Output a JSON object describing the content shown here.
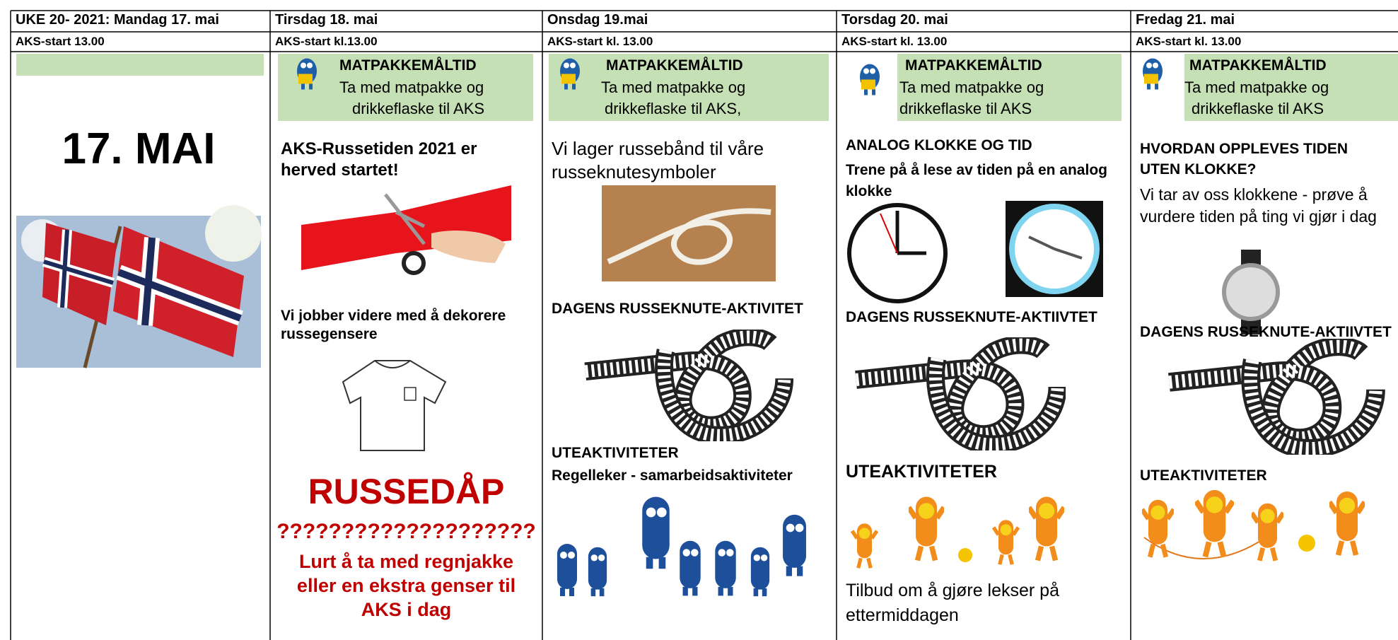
{
  "table": {
    "columns": [
      {
        "day": "UKE 20- 2021: Mandag 17. mai",
        "aks": "AKS-start 13.00",
        "title": "17. MAI"
      },
      {
        "day": "Tirsdag 18. mai",
        "aks": "AKS-start kl.13.00",
        "lunch": {
          "title": "MATPAKKEMÅLTID",
          "lines": [
            "Ta med matpakke og",
            "drikkeflaske til AKS"
          ]
        },
        "items": [
          "AKS-Russetiden 2021 er herved startet!",
          "Vi jobber videre med å dekorere russegensere",
          "RUSSEDÅP",
          "????????????????????",
          "Lurt å ta med regnjakke eller en ekstra genser til AKS i dag"
        ]
      },
      {
        "day": "Onsdag 19.mai",
        "aks": "AKS-start kl. 13.00",
        "lunch": {
          "title": "MATPAKKEMÅLTID",
          "lines": [
            "Ta med matpakke og",
            "drikkeflaske til AKS,"
          ]
        },
        "items": [
          "Vi lager russebånd til våre russeknutesymboler",
          "DAGENS RUSSEKNUTE-AKTIVITET",
          "UTEAKTIVITETER",
          "Regelleker - samarbeidsaktiviteter"
        ]
      },
      {
        "day": "Torsdag 20. mai",
        "aks": "AKS-start kl. 13.00",
        "lunch": {
          "title": "MATPAKKEMÅLTID",
          "lines": [
            "Ta med matpakke og",
            "drikkeflaske til AKS"
          ]
        },
        "items": [
          "ANALOG KLOKKE OG TID",
          "Trene på å lese av tiden på en analog klokke",
          "DAGENS RUSSEKNUTE-AKTIIVTET",
          "UTEAKTIVITETER",
          "Tilbud om å gjøre lekser på ettermiddagen"
        ]
      },
      {
        "day": "Fredag 21. mai",
        "aks": "AKS-start kl. 13.00",
        "lunch": {
          "title": "MATPAKKEMÅLTID",
          "lines": [
            "Ta med matpakke og",
            "drikkeflaske til AKS"
          ]
        },
        "items": [
          "HVORDAN OPPLEVES TIDEN UTEN KLOKKE?",
          "Vi tar av oss klokkene - prøve å vurdere tiden på ting vi gjør i dag",
          "DAGENS RUSSEKNUTE-AKTIIVTET",
          "UTEAKTIVITETER"
        ]
      }
    ]
  }
}
